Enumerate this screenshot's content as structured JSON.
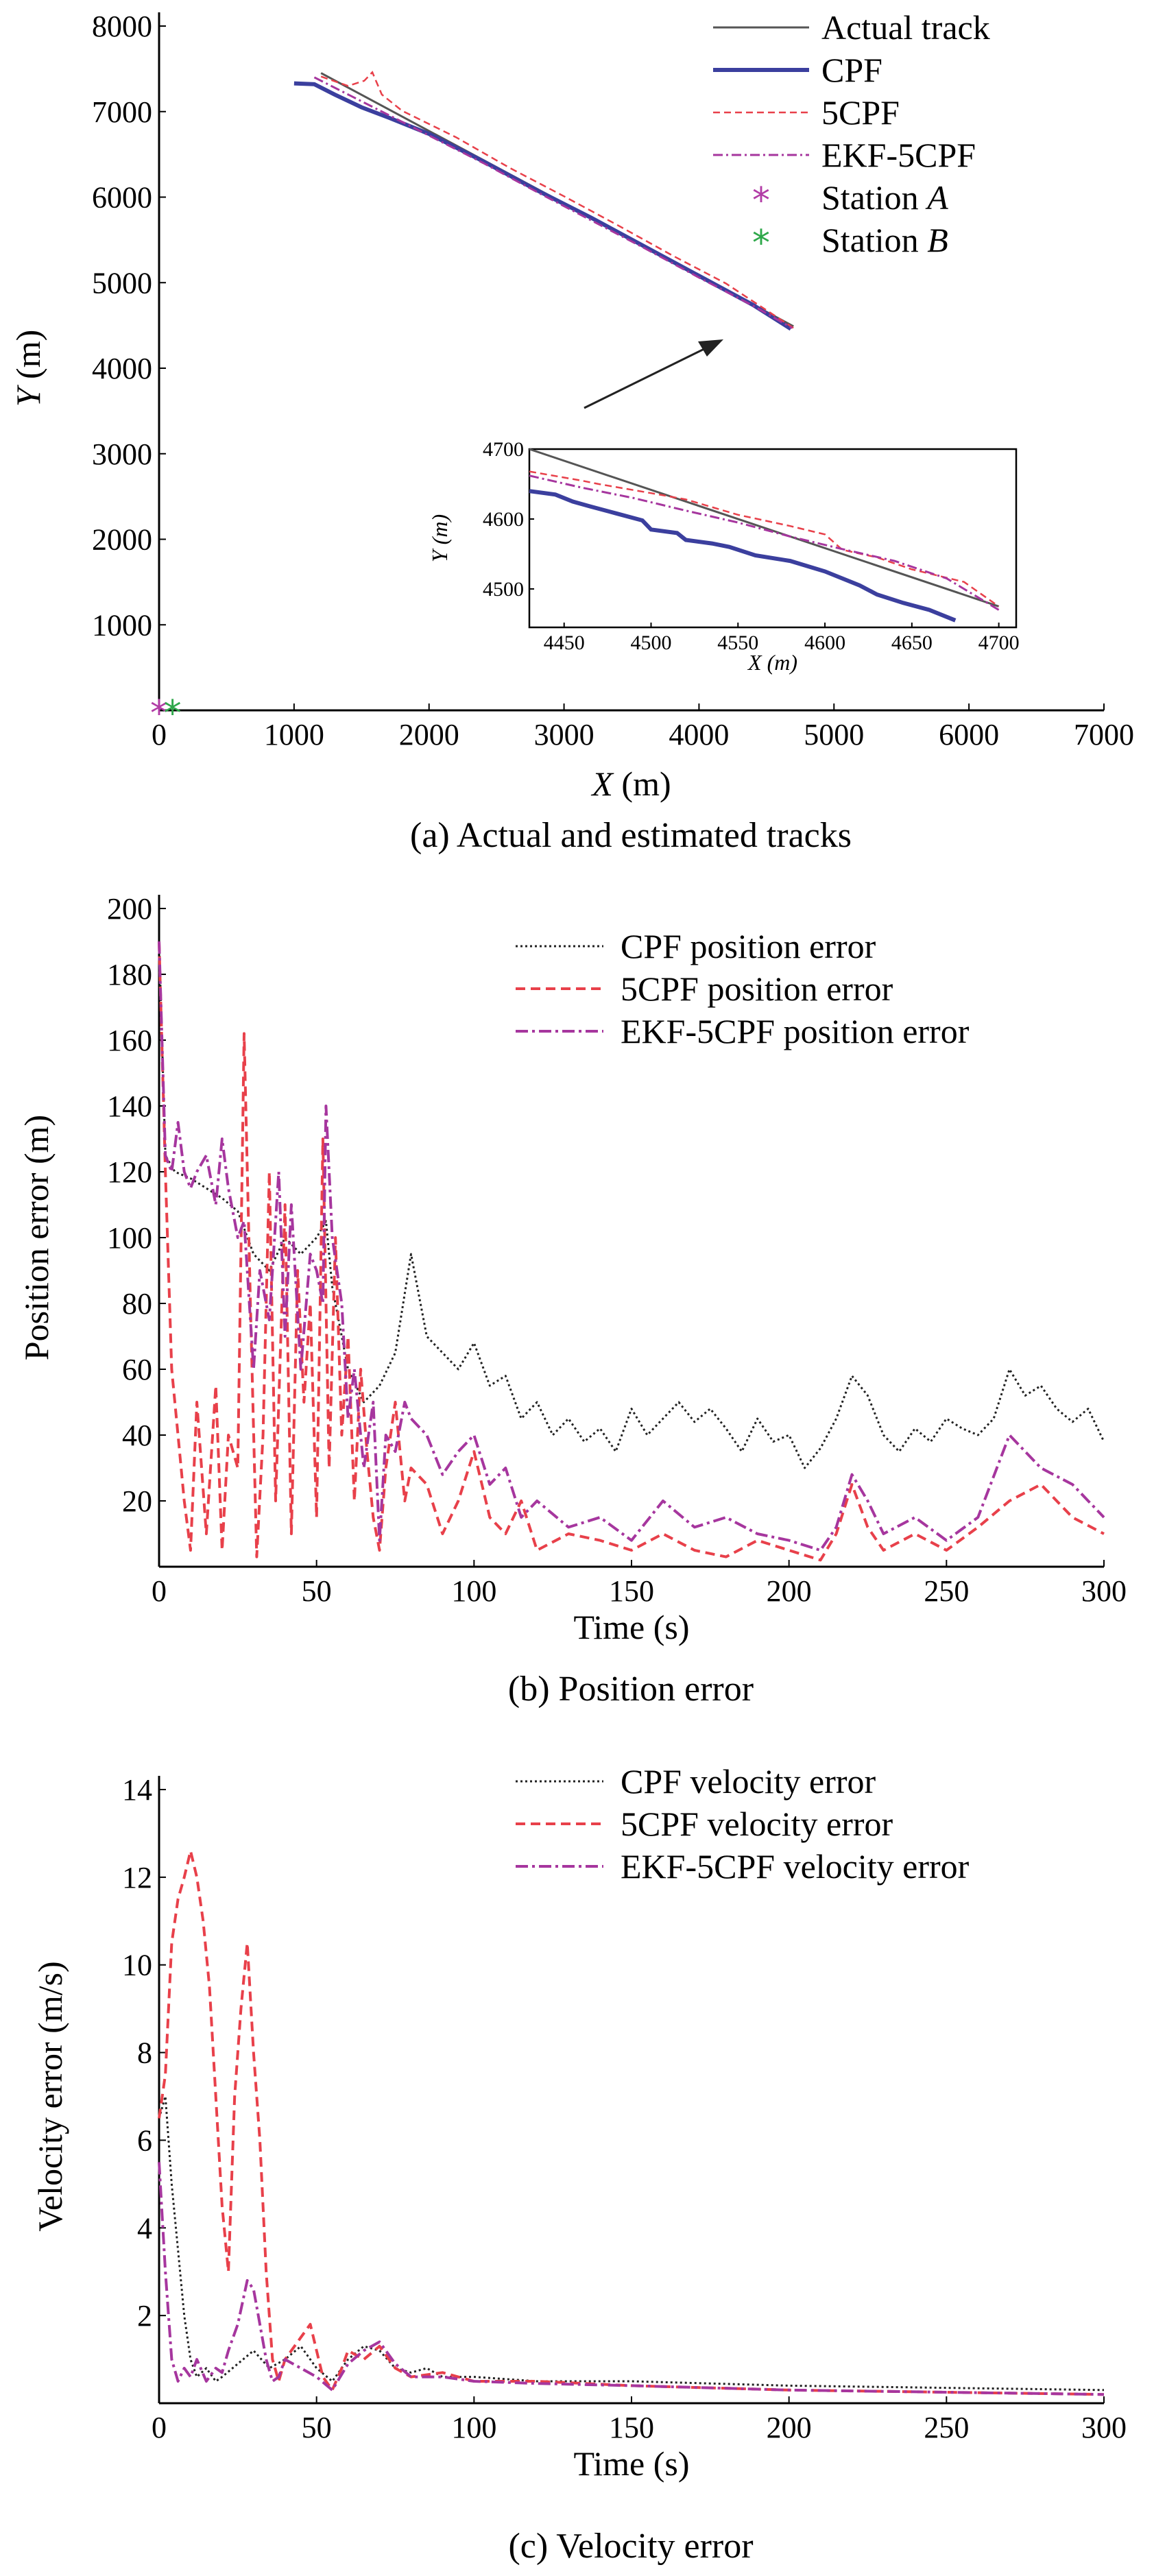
{
  "colors": {
    "actual": "#555555",
    "cpf_track": "#3b3f9e",
    "fivecpf": "#e8404a",
    "ekf": "#a6369e",
    "cpf_dotted": "#222222",
    "station_a": "#b23ca6",
    "station_b": "#2ea84a"
  },
  "chart_data": [
    {
      "type": "line",
      "title": "(a) Actual and estimated tracks",
      "xlabel_var": "X",
      "xlabel_unit": " (m)",
      "ylabel_var": "Y",
      "ylabel_unit": " (m)",
      "xlim": [
        0,
        7000
      ],
      "ylim": [
        0,
        8000
      ],
      "xticks": [
        0,
        1000,
        2000,
        3000,
        4000,
        5000,
        6000,
        7000
      ],
      "xtick_labels": [
        "0",
        "1000",
        "2000",
        "3000",
        "4000",
        "5000",
        "6000",
        "7000"
      ],
      "yticks": [
        1000,
        2000,
        3000,
        4000,
        5000,
        6000,
        7000,
        8000
      ],
      "ytick_labels": [
        "1000",
        "2000",
        "3000",
        "4000",
        "5000",
        "6000",
        "7000",
        "8000"
      ],
      "legend": [
        "Actual track",
        "CPF",
        "5CPF",
        "EKF-5CPF"
      ],
      "station_labels": [
        {
          "prefix": "Station ",
          "letter": "A"
        },
        {
          "prefix": "Station ",
          "letter": "B"
        }
      ],
      "stations": [
        {
          "x": 0,
          "y": 0
        },
        {
          "x": 100,
          "y": 0
        }
      ],
      "series": [
        {
          "name": "Actual track",
          "x": [
            1200,
            4700
          ],
          "y": [
            7450,
            4490
          ]
        },
        {
          "name": "CPF",
          "x": [
            1000,
            1150,
            1300,
            1500,
            1700,
            2000,
            2400,
            2800,
            3200,
            3600,
            4000,
            4400,
            4680
          ],
          "y": [
            7330,
            7320,
            7200,
            7050,
            6930,
            6740,
            6420,
            6080,
            5760,
            5420,
            5080,
            4740,
            4460
          ]
        },
        {
          "name": "5CPF",
          "x": [
            1200,
            1400,
            1520,
            1580,
            1650,
            1800,
            2200,
            2600,
            3000,
            3400,
            3800,
            4200,
            4700
          ],
          "y": [
            7410,
            7300,
            7360,
            7460,
            7200,
            7010,
            6700,
            6340,
            6010,
            5670,
            5320,
            4990,
            4470
          ]
        },
        {
          "name": "EKF-5CPF",
          "x": [
            1150,
            1400,
            1700,
            2000,
            2400,
            2800,
            3200,
            3600,
            4000,
            4400,
            4690
          ],
          "y": [
            7400,
            7200,
            6960,
            6720,
            6400,
            6060,
            5730,
            5400,
            5060,
            4730,
            4470
          ]
        }
      ],
      "inset": {
        "xlabel": "X (m)",
        "ylabel": "Y (m)",
        "xlim": [
          4430,
          4710
        ],
        "ylim": [
          4445,
          4700
        ],
        "xticks": [
          4450,
          4500,
          4550,
          4600,
          4650,
          4700
        ],
        "xtick_labels": [
          "4450",
          "4500",
          "4550",
          "4600",
          "4650",
          "4700"
        ],
        "yticks": [
          4500,
          4600,
          4700
        ],
        "ytick_labels": [
          "4500",
          "4600",
          "4700"
        ],
        "series": [
          {
            "name": "Actual track",
            "x": [
              4430,
              4700
            ],
            "y": [
              4700,
              4475
            ]
          },
          {
            "name": "CPF",
            "x": [
              4430,
              4445,
              4455,
              4465,
              4480,
              4495,
              4500,
              4515,
              4520,
              4535,
              4545,
              4560,
              4580,
              4600,
              4620,
              4630,
              4645,
              4660,
              4675
            ],
            "y": [
              4640,
              4635,
              4625,
              4618,
              4608,
              4598,
              4585,
              4580,
              4570,
              4565,
              4560,
              4548,
              4540,
              4525,
              4505,
              4492,
              4480,
              4470,
              4455
            ]
          },
          {
            "name": "5CPF",
            "x": [
              4430,
              4460,
              4470,
              4500,
              4520,
              4550,
              4580,
              4600,
              4610,
              4630,
              4650,
              4680,
              4700
            ],
            "y": [
              4668,
              4655,
              4650,
              4637,
              4628,
              4606,
              4590,
              4578,
              4556,
              4545,
              4528,
              4510,
              4475
            ]
          },
          {
            "name": "EKF-5CPF",
            "x": [
              4430,
              4460,
              4490,
              4520,
              4550,
              4580,
              4610,
              4640,
              4670,
              4700
            ],
            "y": [
              4662,
              4645,
              4630,
              4612,
              4595,
              4575,
              4557,
              4540,
              4515,
              4470
            ]
          }
        ]
      }
    },
    {
      "type": "line",
      "title": "(b) Position error",
      "xlabel": "Time (s)",
      "ylabel": "Position error (m)",
      "xlim": [
        0,
        300
      ],
      "ylim": [
        0,
        200
      ],
      "xticks": [
        0,
        50,
        100,
        150,
        200,
        250,
        300
      ],
      "xtick_labels": [
        "0",
        "50",
        "100",
        "150",
        "200",
        "250",
        "300"
      ],
      "yticks": [
        20,
        40,
        60,
        80,
        100,
        120,
        140,
        160,
        180,
        200
      ],
      "ytick_labels": [
        "20",
        "40",
        "60",
        "80",
        "100",
        "120",
        "140",
        "160",
        "180",
        "200"
      ],
      "legend": [
        "CPF position error",
        "5CPF position error",
        "EKF-5CPF position error"
      ],
      "series": [
        {
          "name": "CPF position error",
          "x": [
            0,
            2,
            5,
            10,
            15,
            20,
            25,
            30,
            35,
            40,
            45,
            50,
            53,
            55,
            60,
            65,
            70,
            75,
            80,
            85,
            90,
            95,
            100,
            105,
            110,
            115,
            120,
            125,
            130,
            135,
            140,
            145,
            150,
            155,
            160,
            165,
            170,
            175,
            180,
            185,
            190,
            195,
            200,
            205,
            210,
            215,
            220,
            225,
            230,
            235,
            240,
            245,
            250,
            255,
            260,
            265,
            270,
            275,
            280,
            285,
            290,
            295,
            300
          ],
          "y": [
            190,
            125,
            120,
            118,
            115,
            112,
            108,
            95,
            90,
            100,
            95,
            100,
            105,
            85,
            60,
            50,
            55,
            65,
            95,
            70,
            65,
            60,
            68,
            55,
            58,
            45,
            50,
            40,
            45,
            38,
            42,
            35,
            48,
            40,
            45,
            50,
            44,
            48,
            42,
            35,
            45,
            38,
            40,
            30,
            36,
            45,
            58,
            52,
            40,
            35,
            42,
            38,
            45,
            42,
            40,
            45,
            60,
            52,
            55,
            48,
            44,
            48,
            38
          ]
        },
        {
          "name": "5CPF position error",
          "x": [
            0,
            2,
            4,
            6,
            8,
            10,
            12,
            15,
            18,
            20,
            22,
            25,
            27,
            29,
            31,
            33,
            35,
            37,
            40,
            42,
            44,
            46,
            48,
            50,
            52,
            54,
            56,
            58,
            60,
            62,
            64,
            66,
            68,
            70,
            72,
            75,
            78,
            80,
            85,
            90,
            95,
            100,
            105,
            110,
            115,
            120,
            130,
            140,
            150,
            160,
            170,
            180,
            190,
            200,
            210,
            215,
            220,
            225,
            230,
            240,
            250,
            260,
            270,
            280,
            290,
            300
          ],
          "y": [
            190,
            120,
            60,
            40,
            20,
            5,
            50,
            10,
            55,
            5,
            40,
            30,
            162,
            80,
            3,
            40,
            120,
            20,
            110,
            10,
            90,
            50,
            80,
            15,
            130,
            30,
            100,
            40,
            70,
            20,
            60,
            35,
            15,
            5,
            30,
            50,
            20,
            30,
            25,
            10,
            20,
            35,
            15,
            10,
            20,
            5,
            10,
            8,
            5,
            10,
            5,
            3,
            8,
            5,
            2,
            10,
            25,
            12,
            5,
            10,
            5,
            12,
            20,
            25,
            15,
            10
          ]
        },
        {
          "name": "EKF-5CPF position error",
          "x": [
            0,
            2,
            4,
            6,
            8,
            10,
            12,
            15,
            18,
            20,
            22,
            25,
            27,
            30,
            32,
            35,
            38,
            40,
            42,
            45,
            48,
            50,
            52,
            53,
            55,
            58,
            60,
            62,
            65,
            68,
            70,
            72,
            75,
            78,
            80,
            85,
            90,
            95,
            100,
            105,
            110,
            115,
            120,
            130,
            140,
            150,
            160,
            170,
            180,
            190,
            200,
            210,
            215,
            220,
            225,
            230,
            240,
            250,
            260,
            270,
            280,
            290,
            300
          ],
          "y": [
            190,
            125,
            120,
            135,
            120,
            115,
            120,
            125,
            110,
            130,
            115,
            100,
            105,
            60,
            90,
            75,
            120,
            70,
            110,
            60,
            95,
            90,
            80,
            140,
            100,
            80,
            45,
            60,
            30,
            50,
            8,
            40,
            35,
            50,
            45,
            40,
            28,
            35,
            40,
            25,
            30,
            15,
            20,
            12,
            15,
            8,
            20,
            12,
            15,
            10,
            8,
            5,
            12,
            28,
            20,
            10,
            15,
            8,
            15,
            40,
            30,
            25,
            15
          ]
        }
      ]
    },
    {
      "type": "line",
      "title": "(c) Velocity error",
      "xlabel": "Time (s)",
      "ylabel": "Velocity error (m/s)",
      "xlim": [
        0,
        300
      ],
      "ylim": [
        0,
        14
      ],
      "xticks": [
        0,
        50,
        100,
        150,
        200,
        250,
        300
      ],
      "xtick_labels": [
        "0",
        "50",
        "100",
        "150",
        "200",
        "250",
        "300"
      ],
      "yticks": [
        2,
        4,
        6,
        8,
        10,
        12,
        14
      ],
      "ytick_labels": [
        "2",
        "4",
        "6",
        "8",
        "10",
        "12",
        "14"
      ],
      "legend": [
        "CPF velocity error",
        "5CPF velocity error",
        "EKF-5CPF velocity error"
      ],
      "series": [
        {
          "name": "CPF velocity error",
          "x": [
            0,
            2,
            4,
            6,
            8,
            10,
            12,
            15,
            18,
            20,
            25,
            30,
            35,
            40,
            45,
            50,
            55,
            60,
            65,
            70,
            75,
            80,
            85,
            90,
            100,
            120,
            150,
            200,
            250,
            300
          ],
          "y": [
            6.5,
            7.0,
            5.0,
            3.5,
            2.0,
            1.0,
            0.6,
            0.8,
            0.5,
            0.6,
            0.9,
            1.2,
            0.8,
            1.0,
            1.3,
            0.8,
            0.5,
            1.0,
            1.3,
            1.2,
            0.8,
            0.7,
            0.8,
            0.6,
            0.6,
            0.5,
            0.5,
            0.4,
            0.35,
            0.3
          ]
        },
        {
          "name": "5CPF velocity error",
          "x": [
            0,
            2,
            4,
            6,
            8,
            10,
            12,
            14,
            16,
            18,
            20,
            22,
            24,
            26,
            28,
            30,
            32,
            34,
            36,
            38,
            40,
            45,
            48,
            50,
            52,
            55,
            58,
            60,
            65,
            70,
            75,
            80,
            90,
            100,
            120,
            150,
            200,
            250,
            300
          ],
          "y": [
            6.5,
            7.5,
            10.5,
            11.5,
            12.0,
            12.6,
            12.0,
            11.0,
            9.5,
            7.0,
            4.5,
            3.0,
            7.0,
            9.0,
            10.5,
            8.0,
            6.0,
            3.0,
            1.0,
            0.5,
            1.0,
            1.5,
            1.8,
            1.2,
            0.6,
            0.3,
            0.8,
            1.2,
            1.0,
            1.3,
            0.8,
            0.6,
            0.7,
            0.5,
            0.5,
            0.4,
            0.3,
            0.25,
            0.2
          ]
        },
        {
          "name": "EKF-5CPF velocity error",
          "x": [
            0,
            2,
            4,
            6,
            8,
            10,
            12,
            15,
            18,
            20,
            22,
            25,
            28,
            30,
            32,
            34,
            36,
            38,
            40,
            45,
            50,
            55,
            60,
            65,
            70,
            75,
            80,
            90,
            100,
            120,
            150,
            200,
            250,
            300
          ],
          "y": [
            5.5,
            3.0,
            1.0,
            0.5,
            0.8,
            0.6,
            1.0,
            0.5,
            0.8,
            0.7,
            1.2,
            1.8,
            2.8,
            2.6,
            1.8,
            1.0,
            0.5,
            0.6,
            1.0,
            0.8,
            0.6,
            0.3,
            0.9,
            1.2,
            1.4,
            0.9,
            0.6,
            0.6,
            0.5,
            0.45,
            0.4,
            0.3,
            0.25,
            0.2
          ]
        }
      ]
    }
  ]
}
